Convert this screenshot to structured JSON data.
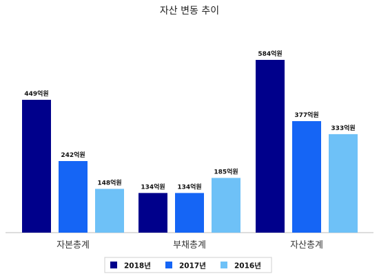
{
  "chart_data": {
    "type": "bar",
    "title": "자산 변동 추이",
    "categories": [
      "자본총계",
      "부채총계",
      "자산총계"
    ],
    "series": [
      {
        "name": "2018년",
        "color": "#00008b",
        "values": [
          449,
          134,
          584
        ],
        "labels": [
          "449억원",
          "134억원",
          "584억원"
        ]
      },
      {
        "name": "2017년",
        "color": "#1565f5",
        "values": [
          242,
          134,
          377
        ],
        "labels": [
          "242억원",
          "134억원",
          "377억원"
        ]
      },
      {
        "name": "2016년",
        "color": "#6ec1f7",
        "values": [
          148,
          185,
          333
        ],
        "labels": [
          "148억원",
          "185억원",
          "333억원"
        ]
      }
    ],
    "xlabel": "",
    "ylabel": "",
    "ylim": [
      0,
      600
    ],
    "grid": false,
    "legend_position": "bottom"
  }
}
